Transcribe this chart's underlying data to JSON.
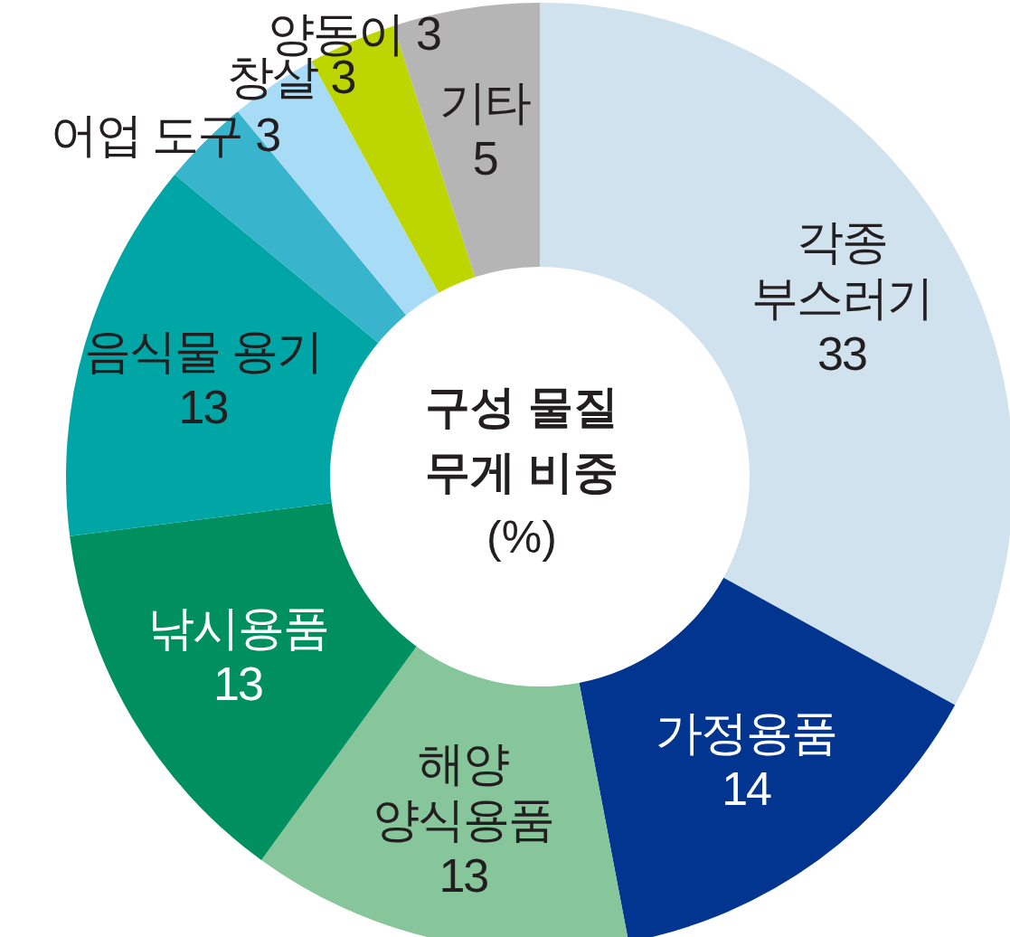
{
  "chart_data": {
    "type": "donut",
    "title": "구성 물질 무게 비중 (%)",
    "categories": [
      "각종 부스러기",
      "가정용품",
      "해양 양식용품",
      "낚시용품",
      "음식물 용기",
      "어업 도구",
      "창살",
      "양동이",
      "기타"
    ],
    "values": [
      33,
      14,
      13,
      13,
      13,
      3,
      3,
      3,
      5
    ],
    "colors": [
      "#cfe2ee",
      "#02358f",
      "#86c69a",
      "#009060",
      "#00a6a6",
      "#38b4cc",
      "#a8dbf5",
      "#bed600",
      "#b5b5b5"
    ],
    "data_labels": true
  }
}
